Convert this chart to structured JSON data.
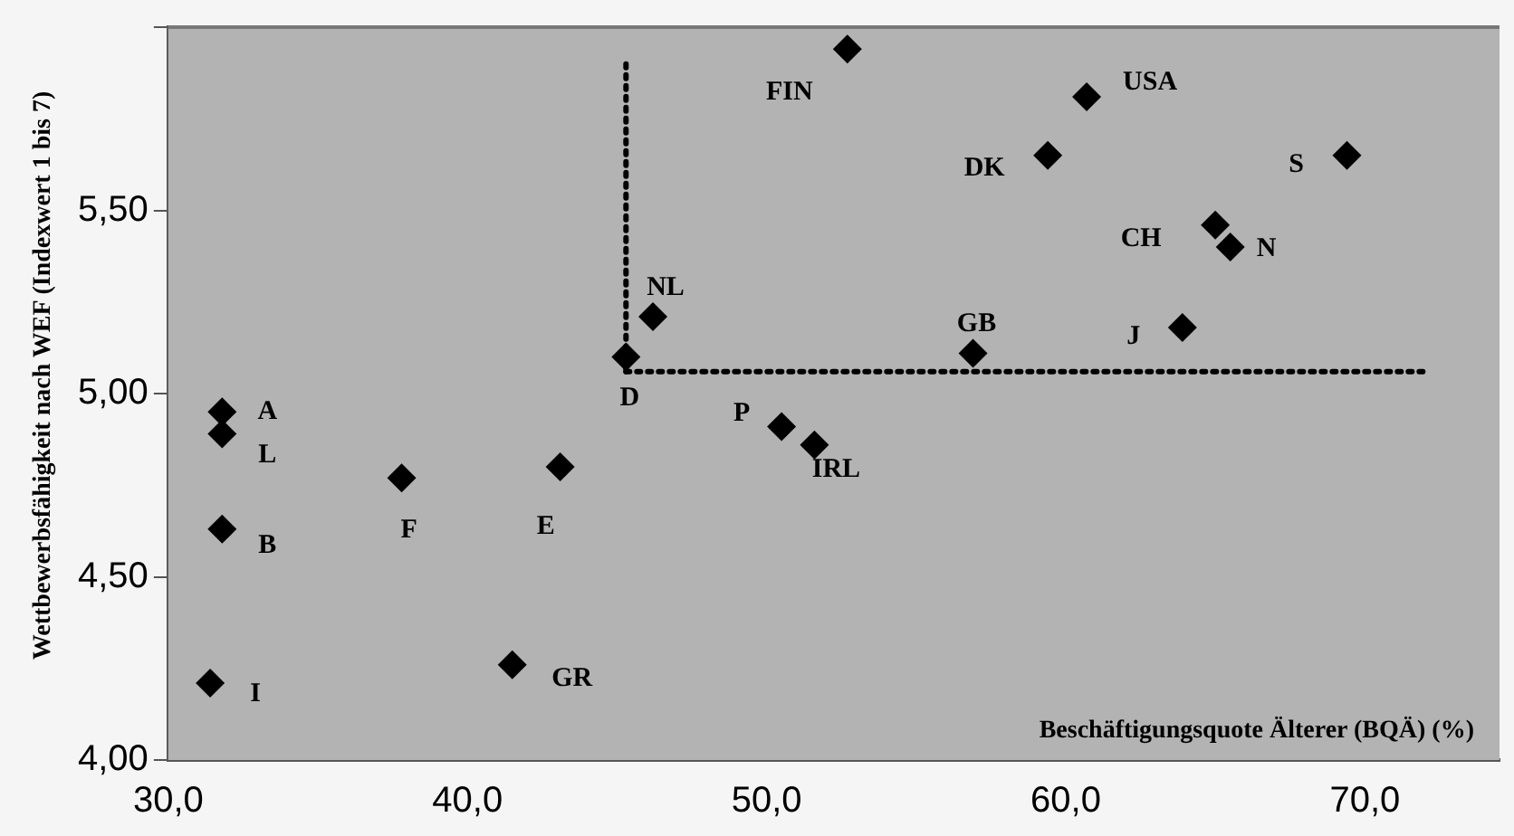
{
  "chart_data": {
    "type": "scatter",
    "xlabel": "Beschäftigungsquote Älterer (BQÄ) (%)",
    "ylabel": "Wettbewerbsfähigkeit nach WEF (Indexwert 1 bis 7)",
    "x": [
      31.8,
      31.8,
      31.8,
      31.4,
      37.8,
      43.1,
      41.5,
      45.3,
      46.2,
      50.5,
      51.6,
      52.7,
      60.7,
      59.4,
      69.4,
      65.0,
      65.5,
      56.9,
      63.9
    ],
    "series": [
      {
        "color": "#000000",
        "values": [
          4.95,
          4.89,
          4.63,
          4.21,
          4.77,
          4.8,
          4.26,
          5.1,
          5.21,
          4.91,
          4.86,
          5.94,
          5.81,
          5.65,
          5.65,
          5.46,
          5.4,
          5.11,
          5.18
        ]
      }
    ],
    "marker": "diamond",
    "xlim": [
      30,
      74.5
    ],
    "xticks": [
      {
        "value": 30,
        "label": "30,0"
      },
      {
        "value": 40,
        "label": "40,0"
      },
      {
        "value": 50,
        "label": "50,0"
      },
      {
        "value": 60,
        "label": "60,0"
      },
      {
        "value": 70,
        "label": "70,0"
      }
    ],
    "ylim": [
      4,
      6
    ],
    "yticks": [
      {
        "value": 4,
        "label": "4,00"
      },
      {
        "value": 4.5,
        "label": "4,50"
      },
      {
        "value": 5,
        "label": "5,00"
      },
      {
        "value": 5.5,
        "label": "5,50"
      },
      {
        "value": 6,
        "label": null
      }
    ],
    "ref_lines": [
      {
        "axis": "x",
        "value": 45.3,
        "color": "#000000",
        "line_style": "dotted"
      },
      {
        "axis": "y",
        "value": 5.06,
        "color": "#000000",
        "line_style": "dotted"
      }
    ],
    "annotations": [
      {
        "text": "A",
        "x": 31.8,
        "y": 4.95
      },
      {
        "text": "L",
        "x": 31.8,
        "y": 4.89
      },
      {
        "text": "B",
        "x": 31.8,
        "y": 4.63
      },
      {
        "text": "I",
        "x": 31.4,
        "y": 4.21
      },
      {
        "text": "F",
        "x": 37.8,
        "y": 4.77
      },
      {
        "text": "E",
        "x": 43.1,
        "y": 4.8
      },
      {
        "text": "GR",
        "x": 41.5,
        "y": 4.26
      },
      {
        "text": "D",
        "x": 45.3,
        "y": 5.1
      },
      {
        "text": "NL",
        "x": 46.2,
        "y": 5.21
      },
      {
        "text": "P",
        "x": 50.5,
        "y": 4.91
      },
      {
        "text": "IRL",
        "x": 51.6,
        "y": 4.86
      },
      {
        "text": "FIN",
        "x": 52.7,
        "y": 5.94
      },
      {
        "text": "USA",
        "x": 60.7,
        "y": 5.81
      },
      {
        "text": "DK",
        "x": 59.4,
        "y": 5.65
      },
      {
        "text": "S",
        "x": 69.4,
        "y": 5.65
      },
      {
        "text": "CH",
        "x": 65.0,
        "y": 5.46
      },
      {
        "text": "N",
        "x": 65.5,
        "y": 5.4
      },
      {
        "text": "GB",
        "x": 56.9,
        "y": 5.11
      },
      {
        "text": "J",
        "x": 63.9,
        "y": 5.18
      }
    ],
    "legend": false,
    "grid": false
  }
}
